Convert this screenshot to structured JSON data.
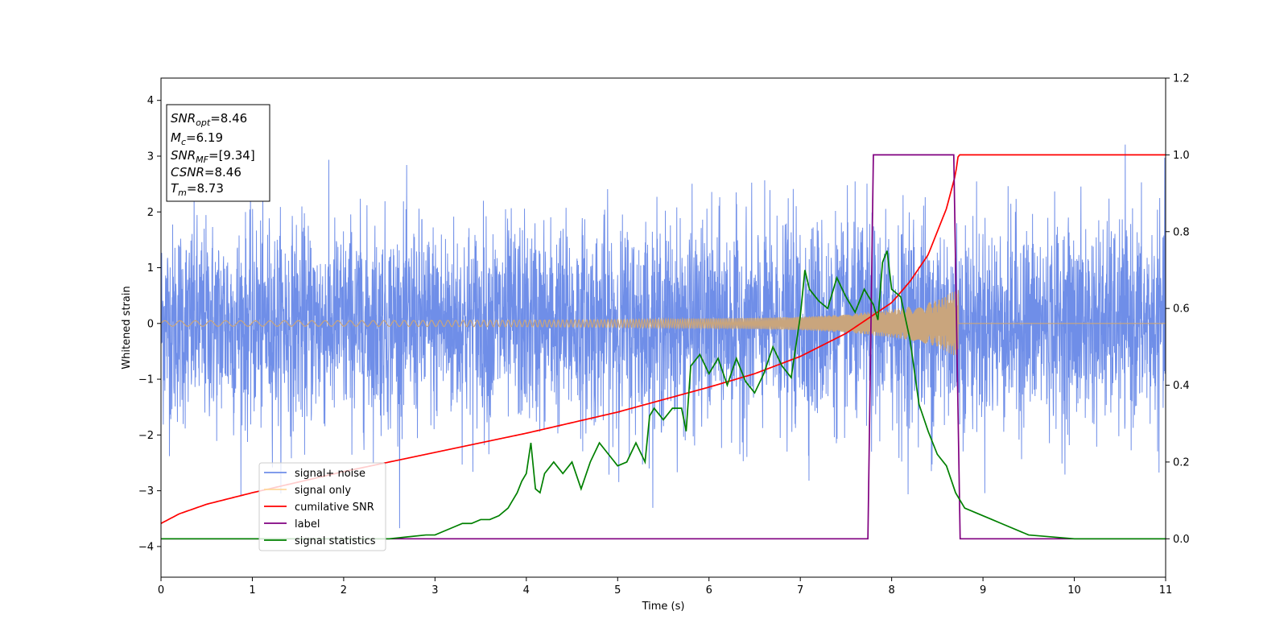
{
  "chart_data": {
    "type": "line",
    "xlabel": "Time (s)",
    "ylabel": "Whitened strain",
    "xlim": [
      0,
      11
    ],
    "ylim_left": [
      -4.55,
      4.4
    ],
    "ylim_right": [
      -0.1,
      1.2
    ],
    "x_ticks": [
      "0",
      "1",
      "2",
      "3",
      "4",
      "5",
      "6",
      "7",
      "8",
      "9",
      "10",
      "11"
    ],
    "y_left_ticks": [
      "−4",
      "−3",
      "−2",
      "−1",
      "0",
      "1",
      "2",
      "3",
      "4"
    ],
    "y_right_ticks": [
      "0.0",
      "0.2",
      "0.4",
      "0.6",
      "0.8",
      "1.0",
      "1.2"
    ],
    "grid": false,
    "legend_position": "lower-left",
    "colors": {
      "noise": "#6f8ee8",
      "signal": "#c9a57d",
      "signal_legend": "#ffd89b",
      "cumulative_snr": "#ff0000",
      "label": "#800080",
      "statistics": "#008000"
    },
    "info_box": [
      {
        "name": "SNR",
        "sub": "opt",
        "value": "=8.46"
      },
      {
        "name": "M",
        "sub": "c",
        "value": "=6.19"
      },
      {
        "name": "SNR",
        "sub": "MF",
        "value": "=[9.34]"
      },
      {
        "name": "CSNR",
        "sub": "",
        "value": "=8.46"
      },
      {
        "name": "T",
        "sub": "m",
        "value": "=8.73"
      }
    ],
    "series": [
      {
        "name": "signal+ noise",
        "axis": "left",
        "description_values": {
          "std": 0.9,
          "x_range": [
            0,
            11
          ],
          "gap_near": 8.73
        }
      },
      {
        "name": "signal only",
        "axis": "left",
        "envelope": {
          "x": [
            0,
            2,
            4,
            5,
            6,
            6.5,
            7,
            7.5,
            8,
            8.3,
            8.5,
            8.65,
            8.73
          ],
          "amplitude": [
            0.05,
            0.05,
            0.06,
            0.07,
            0.09,
            0.1,
            0.12,
            0.16,
            0.25,
            0.33,
            0.42,
            0.55,
            0.6
          ]
        }
      },
      {
        "name": "cumilative SNR",
        "axis": "right",
        "x": [
          0,
          0.2,
          0.5,
          1,
          2,
          3,
          4,
          5,
          6,
          6.5,
          7,
          7.5,
          8,
          8.2,
          8.4,
          8.6,
          8.7,
          8.73,
          11
        ],
        "y": [
          0.04,
          0.065,
          0.09,
          0.12,
          0.175,
          0.225,
          0.275,
          0.33,
          0.395,
          0.43,
          0.475,
          0.535,
          0.615,
          0.67,
          0.74,
          0.86,
          0.95,
          1.0,
          1.0
        ]
      },
      {
        "name": "label",
        "axis": "right",
        "x": [
          0,
          7.74,
          7.8,
          8.68,
          8.75,
          11
        ],
        "y": [
          0,
          0,
          1,
          1,
          0,
          0
        ]
      },
      {
        "name": "signal statistics",
        "axis": "right",
        "x": [
          0,
          2.5,
          2.9,
          3.0,
          3.1,
          3.2,
          3.3,
          3.4,
          3.5,
          3.6,
          3.7,
          3.8,
          3.9,
          3.95,
          4.0,
          4.05,
          4.1,
          4.15,
          4.2,
          4.3,
          4.4,
          4.5,
          4.6,
          4.7,
          4.8,
          4.9,
          5.0,
          5.1,
          5.2,
          5.3,
          5.35,
          5.4,
          5.5,
          5.6,
          5.7,
          5.75,
          5.8,
          5.9,
          6.0,
          6.1,
          6.2,
          6.3,
          6.4,
          6.5,
          6.6,
          6.7,
          6.8,
          6.9,
          7.0,
          7.05,
          7.1,
          7.2,
          7.3,
          7.4,
          7.5,
          7.6,
          7.7,
          7.8,
          7.85,
          7.9,
          7.95,
          8.0,
          8.1,
          8.2,
          8.3,
          8.4,
          8.5,
          8.6,
          8.7,
          8.8,
          8.9,
          9.0,
          9.1,
          9.2,
          9.5,
          10,
          11
        ],
        "y": [
          0.0,
          0.0,
          0.01,
          0.01,
          0.02,
          0.03,
          0.04,
          0.04,
          0.05,
          0.05,
          0.06,
          0.08,
          0.12,
          0.15,
          0.17,
          0.25,
          0.13,
          0.12,
          0.17,
          0.2,
          0.17,
          0.2,
          0.13,
          0.2,
          0.25,
          0.22,
          0.19,
          0.2,
          0.25,
          0.2,
          0.32,
          0.34,
          0.31,
          0.34,
          0.34,
          0.28,
          0.45,
          0.48,
          0.43,
          0.47,
          0.4,
          0.47,
          0.41,
          0.38,
          0.43,
          0.5,
          0.45,
          0.42,
          0.58,
          0.7,
          0.65,
          0.62,
          0.6,
          0.68,
          0.63,
          0.59,
          0.65,
          0.61,
          0.57,
          0.72,
          0.75,
          0.65,
          0.63,
          0.52,
          0.35,
          0.28,
          0.22,
          0.19,
          0.12,
          0.08,
          0.07,
          0.06,
          0.05,
          0.04,
          0.01,
          0.0,
          0.0
        ]
      }
    ]
  }
}
